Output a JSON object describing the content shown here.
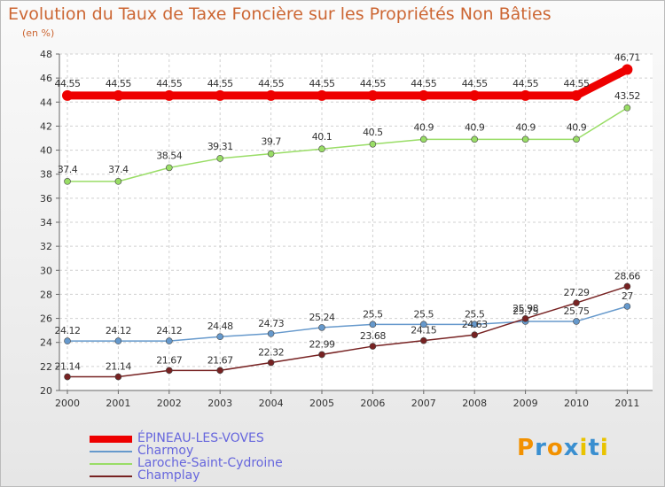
{
  "header": {
    "title": "Evolution du Taux de Taxe Foncière sur les Propriétés Non Bâties",
    "unit": "(en %)"
  },
  "chart_data": {
    "type": "line",
    "title": "Evolution du Taux de Taxe Foncière sur les Propriétés Non Bâties",
    "ylabel": "(en %)",
    "xlabel": "",
    "ylim": [
      20,
      48
    ],
    "yticks": [
      20,
      22,
      24,
      26,
      28,
      30,
      32,
      34,
      36,
      38,
      40,
      42,
      44,
      46,
      48
    ],
    "grid": true,
    "categories": [
      "2000",
      "2001",
      "2002",
      "2003",
      "2004",
      "2005",
      "2006",
      "2007",
      "2008",
      "2009",
      "2010",
      "2011"
    ],
    "series": [
      {
        "name": "ÉPINEAU-LES-VOVES",
        "color": "#ee0000",
        "values": [
          44.55,
          44.55,
          44.55,
          44.55,
          44.55,
          44.55,
          44.55,
          44.55,
          44.55,
          44.55,
          44.55,
          46.71
        ],
        "labels": [
          "44.55",
          "44.55",
          "44.55",
          "44.55",
          "44.55",
          "44.55",
          "44.55",
          "44.55",
          "44.55",
          "44.55",
          "44.55",
          "46.71"
        ]
      },
      {
        "name": "Charmoy",
        "color": "#6699cc",
        "values": [
          24.12,
          24.12,
          24.12,
          24.48,
          24.73,
          25.24,
          25.5,
          25.5,
          25.5,
          25.75,
          25.75,
          27
        ],
        "labels": [
          "24.12",
          "24.12",
          "24.12",
          "24.48",
          "24.73",
          "25.24",
          "25.5",
          "25.5",
          "25.5",
          "25.75",
          "25.75",
          "27"
        ]
      },
      {
        "name": "Laroche-Saint-Cydroine",
        "color": "#99dd66",
        "values": [
          37.4,
          37.4,
          38.54,
          39.31,
          39.7,
          40.1,
          40.5,
          40.9,
          40.9,
          40.9,
          40.9,
          43.52
        ],
        "labels": [
          "37.4",
          "37.4",
          "38.54",
          "39.31",
          "39.7",
          "40.1",
          "40.5",
          "40.9",
          "40.9",
          "40.9",
          "40.9",
          "43.52"
        ]
      },
      {
        "name": "Champlay",
        "color": "#772222",
        "values": [
          21.14,
          21.14,
          21.67,
          21.67,
          22.32,
          22.99,
          23.68,
          24.15,
          24.63,
          25.98,
          27.29,
          28.66
        ],
        "labels": [
          "21.14",
          "21.14",
          "21.67",
          "21.67",
          "22.32",
          "22.99",
          "23.68",
          "24.15",
          "24.63",
          "25.98",
          "27.29",
          "28.66"
        ]
      }
    ],
    "legend_position": "bottom-left"
  },
  "logo": {
    "text": "Proxiti",
    "letters": [
      "P",
      "r",
      "o",
      "x",
      "i",
      "t",
      "i"
    ],
    "colors": [
      "#f29100",
      "#3a8fd0",
      "#f29100",
      "#3a8fd0",
      "#e9c300",
      "#3a8fd0",
      "#e9c300"
    ]
  }
}
